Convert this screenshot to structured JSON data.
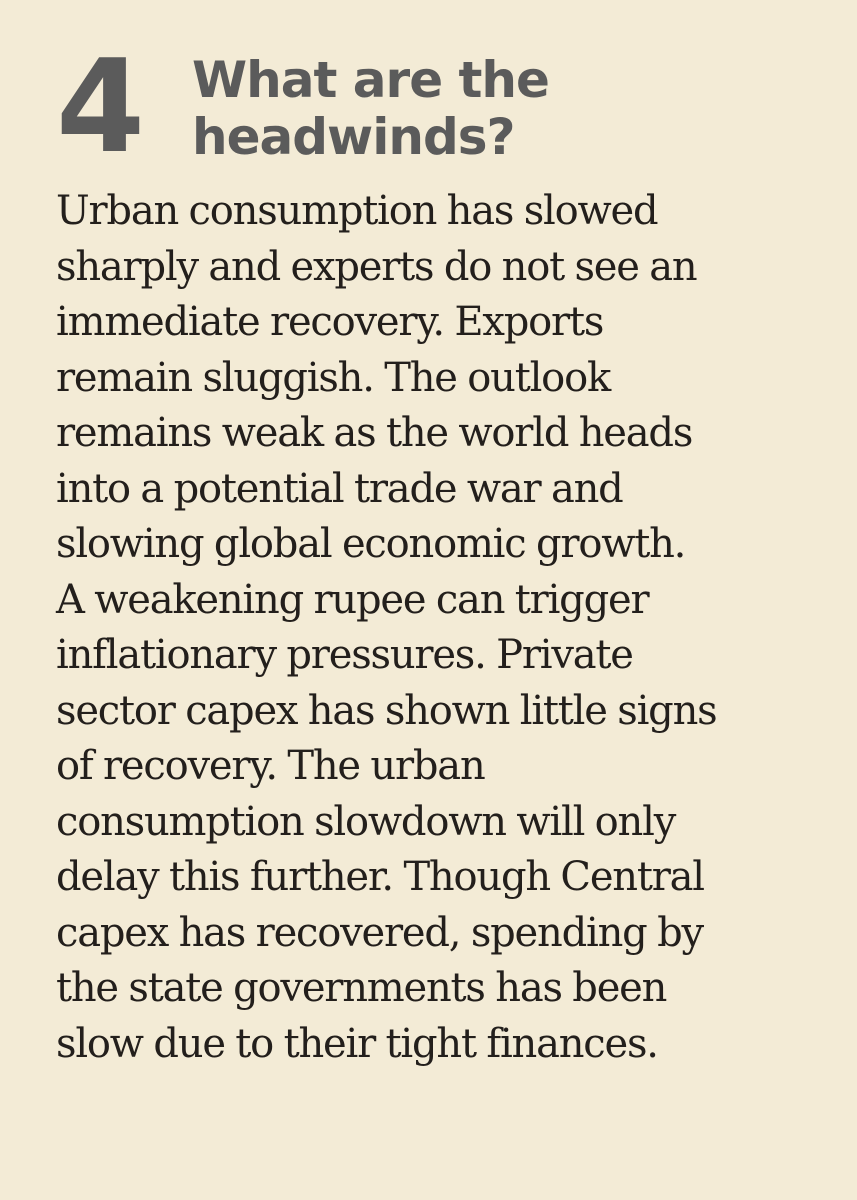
{
  "article": {
    "number": "4",
    "title_lines": [
      "What are the",
      "headwinds?"
    ],
    "body_lines": [
      "Urban consumption has slowed",
      "sharply and experts do not see an",
      "immediate recovery. Exports",
      "remain sluggish. The outlook",
      "remains weak as the world heads",
      "into a potential trade war and",
      "slowing global economic growth.",
      "A weakening rupee can trigger",
      "inflationary pressures. Private",
      "sector capex has shown little signs",
      "of recovery. The urban",
      "consumption slowdown will only",
      "delay this further. Though Central",
      "capex has recovered, spending by",
      "the state governments has been",
      "slow due to their tight finances."
    ]
  }
}
